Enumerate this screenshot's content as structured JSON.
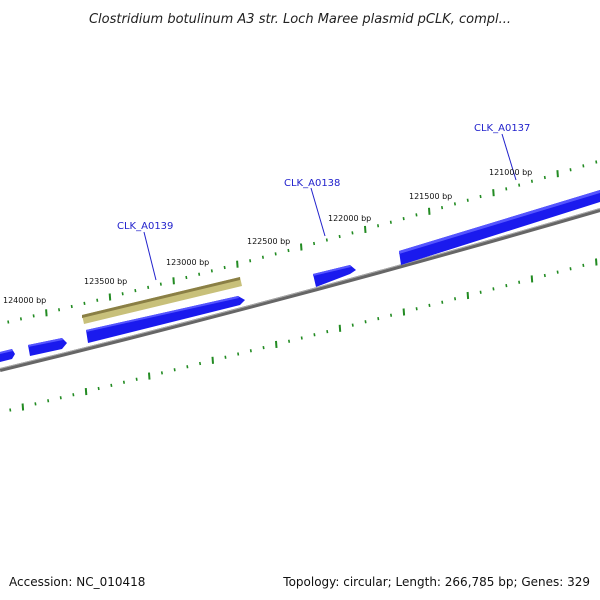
{
  "title": "Clostridium botulinum A3 str. Loch Maree plasmid pCLK, compl...",
  "footer": {
    "accession": "Accession: NC_010418",
    "summary": "Topology: circular; Length: 266,785 bp; Genes: 329"
  },
  "colors": {
    "gene": "#1a1aee",
    "gene_selected": "#c8c07a",
    "backbone": "#777777",
    "tick": "#228b22",
    "label": "#2222cc"
  },
  "tick_labels": [
    "124000 bp",
    "123500 bp",
    "123000 bp",
    "122500 bp",
    "122000 bp",
    "121500 bp",
    "121000 bp"
  ],
  "genes": [
    {
      "name": "CLK_A0139",
      "labeled": true,
      "selected": true
    },
    {
      "name": "CLK_A0138",
      "labeled": true,
      "selected": false
    },
    {
      "name": "CLK_A0137",
      "labeled": true,
      "selected": false
    }
  ]
}
